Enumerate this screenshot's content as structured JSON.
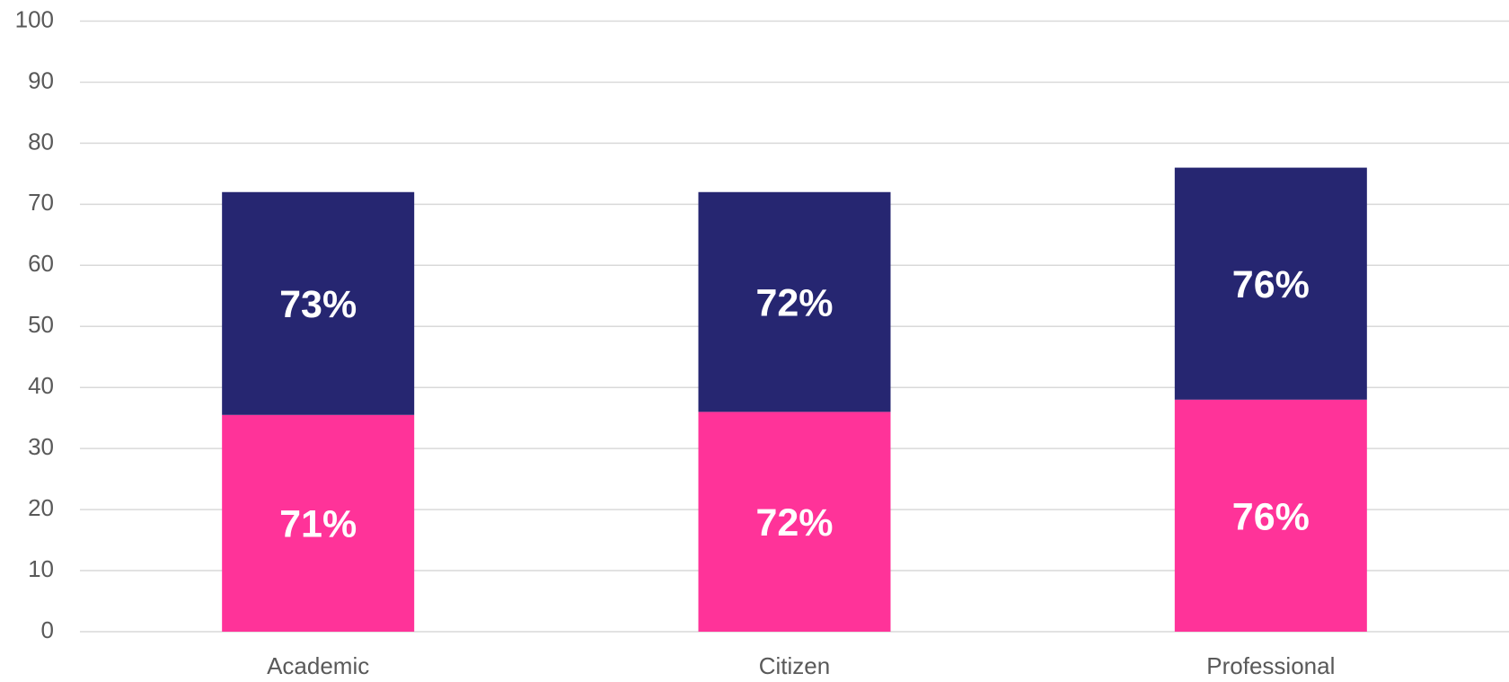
{
  "chart_data": {
    "type": "stacked_bar",
    "categories": [
      "Academic",
      "Citizen",
      "Professional"
    ],
    "series": [
      {
        "color": "#ff3399",
        "values": [
          35.5,
          36,
          38
        ],
        "segment_labels": [
          "71%",
          "72%",
          "76%"
        ]
      },
      {
        "color": "#262671",
        "values": [
          36.5,
          36,
          38
        ],
        "segment_labels": [
          "73%",
          "72%",
          "76%"
        ]
      }
    ],
    "ylim": [
      0,
      100
    ],
    "yticks": [
      0,
      10,
      20,
      30,
      40,
      50,
      60,
      70,
      80,
      90,
      100
    ],
    "grid": true
  }
}
